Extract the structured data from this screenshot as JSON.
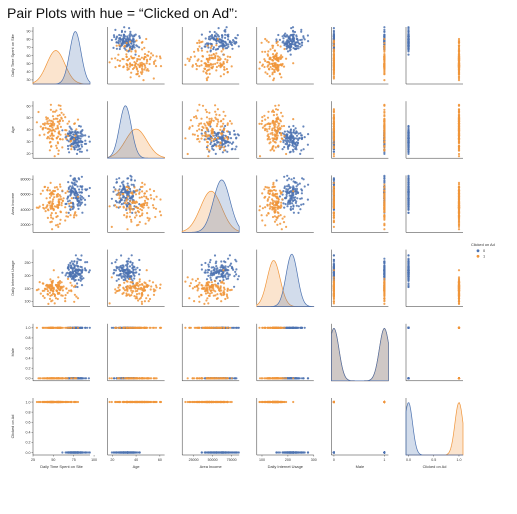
{
  "header": {
    "title": "Pair Plots with hue = “Clicked on Ad”:"
  },
  "colors": {
    "hue_0": "#4c72b0",
    "hue_1": "#f0953a"
  },
  "chart_data": {
    "type": "pairplot",
    "hue": "Clicked on Ad",
    "legend": {
      "title": "Clicked on Ad",
      "placement": "right",
      "entries": [
        "0",
        "1"
      ]
    },
    "variables": [
      {
        "name": "Daily Time Spent on Site",
        "ylim": [
          25,
          95
        ],
        "xticks": [
          "25",
          "50",
          "75",
          "100"
        ],
        "yticks": [
          "30",
          "40",
          "50",
          "60",
          "70",
          "80",
          "90"
        ]
      },
      {
        "name": "Age",
        "ylim": [
          16,
          64
        ],
        "xticks": [
          "20",
          "40",
          "60"
        ],
        "yticks": [
          "20",
          "30",
          "40",
          "50",
          "60"
        ]
      },
      {
        "name": "Area Income",
        "ylim": [
          10000,
          85000
        ],
        "xticks": [
          "25000",
          "50000",
          "75000"
        ],
        "yticks": [
          "20000",
          "40000",
          "60000",
          "80000"
        ]
      },
      {
        "name": "Daily Internet Usage",
        "ylim": [
          80,
          300
        ],
        "xticks": [
          "100",
          "200",
          "300"
        ],
        "yticks": [
          "100",
          "150",
          "200",
          "250"
        ]
      },
      {
        "name": "Male",
        "ylim": [
          -0.05,
          1.08
        ],
        "xticks": [
          "0",
          "1"
        ],
        "yticks": [
          "0.0",
          "0.2",
          "0.4",
          "0.6",
          "0.8",
          "1.0"
        ]
      },
      {
        "name": "Clicked on Ad",
        "ylim": [
          -0.05,
          1.08
        ],
        "xticks": [
          "0.0",
          "0.5",
          "1.0"
        ],
        "yticks": [
          "0.0",
          "0.2",
          "0.4",
          "0.6",
          "0.8",
          "1.0"
        ]
      }
    ],
    "groups": {
      "0": {
        "means": [
          77,
          31,
          62000,
          215
        ],
        "sds": [
          7,
          5,
          11000,
          22
        ]
      },
      "1": {
        "means": [
          53,
          40,
          48000,
          145
        ],
        "sds": [
          11,
          9,
          14000,
          25
        ]
      }
    }
  }
}
